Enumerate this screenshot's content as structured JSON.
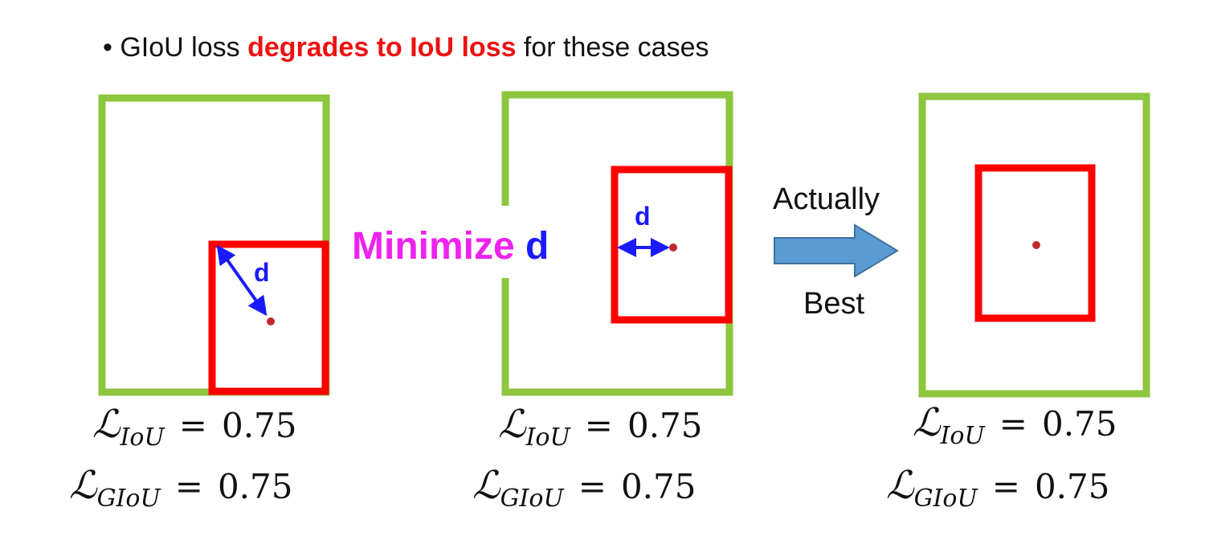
{
  "header": {
    "bullet": "•",
    "prefix": "GIoU loss ",
    "highlight": "degrades to IoU loss",
    "suffix": " for these cases"
  },
  "colors": {
    "target_box": "#8dc63f",
    "pred_box": "#ff0000",
    "highlight_text": "#ee1111",
    "distance": "#1a1aff",
    "minimize_label": "#ee22ee",
    "arrow_fill": "#5b9bd5",
    "arrow_stroke": "#41719c",
    "center_dot": "#c0282d"
  },
  "labels": {
    "distance_1": "d",
    "distance_2": "d",
    "minimize": "Minimize",
    "minimize_var": "d",
    "arrow_top": "Actually",
    "arrow_bottom": "Best"
  },
  "losses": {
    "symbol": "ℒ",
    "iou_sub": "IoU",
    "giou_sub": "GIoU",
    "equals": "=",
    "case1_iou": "0.75",
    "case1_giou": "0.75",
    "case2_iou": "0.75",
    "case2_giou": "0.75",
    "case3_iou": "0.75",
    "case3_giou": "0.75"
  }
}
